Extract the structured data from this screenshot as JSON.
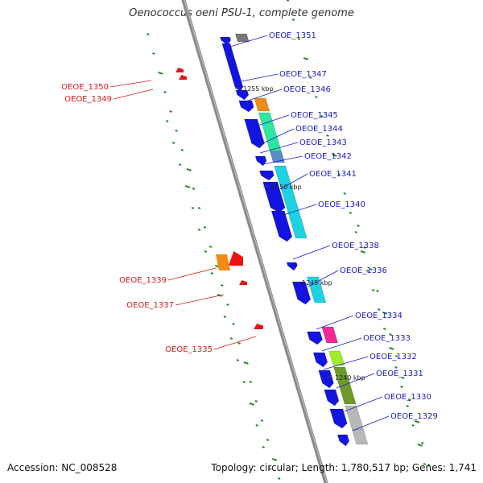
{
  "title": "Oenococcus oeni PSU-1, complete genome",
  "footer": {
    "accession": "Accession: NC_008528",
    "summary": "Topology: circular; Length: 1,780,517 bp; Genes: 1,741"
  },
  "colors": {
    "backbone": "#8a8a8a",
    "forward_label": "#1a1acc",
    "reverse_label": "#d81b1b",
    "gc_marks": "#2a8a2a",
    "reverse_cds": "#ee1111",
    "forward_cds": "#1414e0"
  },
  "scale_ticks": [
    "1255 kbp",
    "1250 kbp",
    "1245 kbp",
    "1240 kbp"
  ],
  "forward_genes": [
    "OEOE_1351",
    "OEOE_1347",
    "OEOE_1346",
    "OEOE_1345",
    "OEOE_1344",
    "OEOE_1343",
    "OEOE_1342",
    "OEOE_1341",
    "OEOE_1340",
    "OEOE_1338",
    "OEOE_1336",
    "OEOE_1334",
    "OEOE_1333",
    "OEOE_1332",
    "OEOE_1331",
    "OEOE_1330",
    "OEOE_1329"
  ],
  "reverse_genes": [
    "OEOE_1350",
    "OEOE_1349",
    "OEOE_1339",
    "OEOE_1337",
    "OEOE_1335"
  ],
  "cog_colors": {
    "orange": "#f08c12",
    "mint": "#2ee6a0",
    "steel": "#5a8cc8",
    "cyan": "#1ed2e6",
    "pink": "#f0289a",
    "lime": "#a0ec2a",
    "olive": "#6e9a2a",
    "gray": "#b8b8b8",
    "dark-gray": "#787878"
  }
}
